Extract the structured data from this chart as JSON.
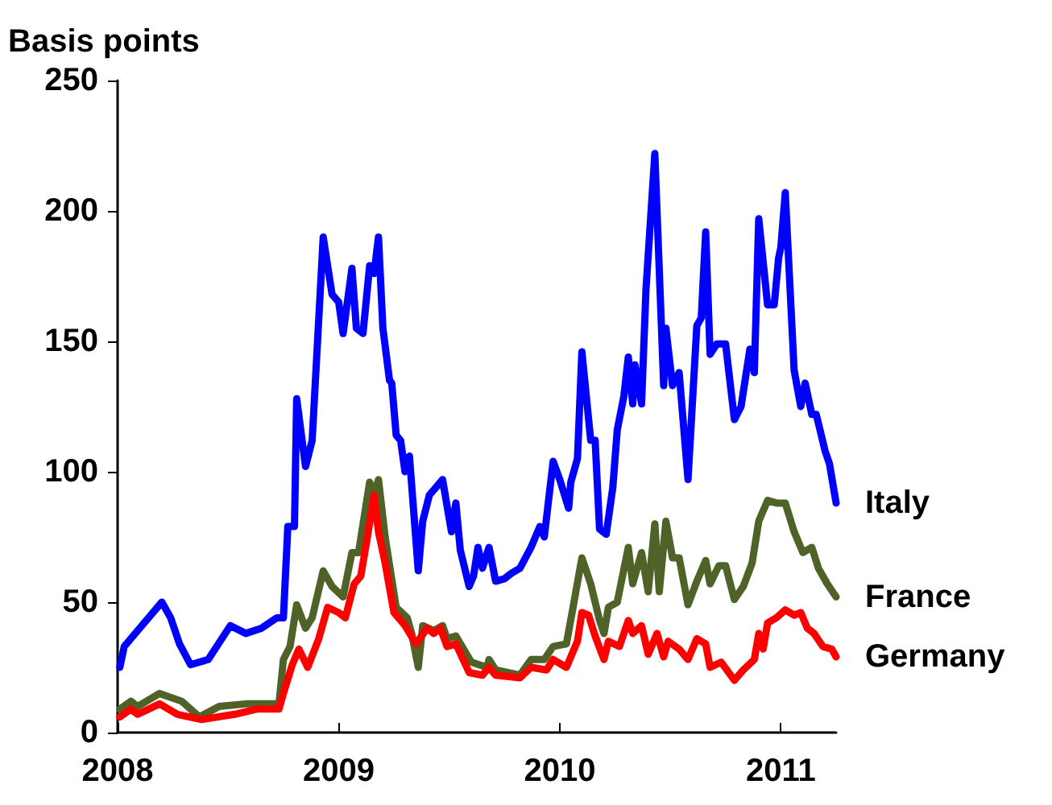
{
  "chart_data": {
    "type": "line",
    "ylabel": "Basis points",
    "xlim": [
      2008,
      2011.25
    ],
    "xticks": [
      2008,
      2009,
      2010,
      2011
    ],
    "ylim": [
      0,
      250
    ],
    "yticks": [
      0,
      50,
      100,
      150,
      200,
      250
    ],
    "line_style": "solid",
    "series": [
      {
        "name": "Italy",
        "color": "#0000ff",
        "x": [
          2008.01,
          2008.03,
          2008.08,
          2008.12,
          2008.2,
          2008.24,
          2008.28,
          2008.33,
          2008.41,
          2008.51,
          2008.58,
          2008.65,
          2008.72,
          2008.75,
          2008.77,
          2008.8,
          2008.81,
          2008.85,
          2008.88,
          2008.93,
          2008.97,
          2009.0,
          2009.02,
          2009.06,
          2009.08,
          2009.11,
          2009.14,
          2009.16,
          2009.18,
          2009.2,
          2009.23,
          2009.24,
          2009.26,
          2009.28,
          2009.3,
          2009.32,
          2009.36,
          2009.38,
          2009.41,
          2009.47,
          2009.51,
          2009.53,
          2009.55,
          2009.59,
          2009.61,
          2009.63,
          2009.65,
          2009.68,
          2009.71,
          2009.75,
          2009.78,
          2009.82,
          2009.87,
          2009.91,
          2009.93,
          2009.97,
          2010.0,
          2010.04,
          2010.05,
          2010.08,
          2010.1,
          2010.14,
          2010.16,
          2010.18,
          2010.21,
          2010.24,
          2010.26,
          2010.29,
          2010.31,
          2010.33,
          2010.34,
          2010.37,
          2010.39,
          2010.43,
          2010.47,
          2010.48,
          2010.51,
          2010.54,
          2010.58,
          2010.62,
          2010.64,
          2010.66,
          2010.68,
          2010.71,
          2010.75,
          2010.79,
          2010.82,
          2010.86,
          2010.88,
          2010.9,
          2010.94,
          2010.97,
          2010.99,
          2011.0,
          2011.02,
          2011.06,
          2011.09,
          2011.11,
          2011.14,
          2011.16,
          2011.2,
          2011.22,
          2011.25
        ],
        "values": [
          25,
          33,
          38,
          42,
          50,
          44,
          34,
          26,
          28,
          41,
          38,
          40,
          44,
          44,
          79,
          79,
          128,
          102,
          112,
          190,
          168,
          165,
          153,
          178,
          155,
          153,
          179,
          176,
          190,
          155,
          135,
          134,
          114,
          112,
          100,
          106,
          62,
          81,
          91,
          97,
          77,
          88,
          70,
          56,
          60,
          71,
          63,
          71,
          58,
          59,
          61,
          63,
          71,
          79,
          75,
          104,
          97,
          86,
          96,
          105,
          146,
          112,
          112,
          78,
          76,
          94,
          116,
          129,
          144,
          126,
          141,
          126,
          170,
          222,
          133,
          155,
          133,
          138,
          97,
          156,
          159,
          192,
          145,
          149,
          149,
          120,
          125,
          147,
          138,
          197,
          164,
          164,
          182,
          186,
          207,
          139,
          125,
          134,
          122,
          122,
          108,
          103,
          88
        ]
      },
      {
        "name": "France",
        "color": "#4f6228",
        "x": [
          2008.01,
          2008.06,
          2008.09,
          2008.19,
          2008.29,
          2008.37,
          2008.46,
          2008.58,
          2008.73,
          2008.75,
          2008.78,
          2008.81,
          2008.85,
          2008.88,
          2008.93,
          2008.97,
          2009.02,
          2009.06,
          2009.09,
          2009.14,
          2009.16,
          2009.18,
          2009.21,
          2009.26,
          2009.31,
          2009.33,
          2009.36,
          2009.38,
          2009.43,
          2009.47,
          2009.49,
          2009.53,
          2009.6,
          2009.67,
          2009.68,
          2009.71,
          2009.82,
          2009.87,
          2009.93,
          2009.97,
          2010.03,
          2010.06,
          2010.1,
          2010.14,
          2010.18,
          2010.2,
          2010.22,
          2010.26,
          2010.31,
          2010.33,
          2010.37,
          2010.4,
          2010.43,
          2010.45,
          2010.48,
          2010.51,
          2010.54,
          2010.58,
          2010.62,
          2010.66,
          2010.68,
          2010.72,
          2010.75,
          2010.79,
          2010.83,
          2010.87,
          2010.9,
          2010.94,
          2010.98,
          2011.02,
          2011.06,
          2011.1,
          2011.14,
          2011.17,
          2011.21,
          2011.25
        ],
        "values": [
          9,
          12,
          10,
          15,
          12,
          6,
          10,
          11,
          11,
          28,
          33,
          49,
          40,
          44,
          62,
          56,
          52,
          69,
          69,
          96,
          91,
          97,
          75,
          48,
          44,
          38,
          25,
          41,
          39,
          41,
          36,
          37,
          27,
          25,
          28,
          24,
          22,
          28,
          28,
          33,
          34,
          48,
          67,
          57,
          43,
          38,
          48,
          50,
          71,
          57,
          69,
          54,
          80,
          54,
          81,
          67,
          67,
          49,
          58,
          66,
          57,
          64,
          64,
          51,
          56,
          65,
          81,
          89,
          88,
          88,
          77,
          69,
          71,
          63,
          57,
          52
        ]
      },
      {
        "name": "Germany",
        "color": "#ff0000",
        "x": [
          2008.01,
          2008.06,
          2008.09,
          2008.19,
          2008.27,
          2008.38,
          2008.53,
          2008.63,
          2008.73,
          2008.75,
          2008.79,
          2008.82,
          2008.86,
          2008.91,
          2008.95,
          2009.0,
          2009.03,
          2009.07,
          2009.1,
          2009.13,
          2009.16,
          2009.18,
          2009.21,
          2009.25,
          2009.3,
          2009.35,
          2009.4,
          2009.43,
          2009.46,
          2009.49,
          2009.53,
          2009.59,
          2009.65,
          2009.68,
          2009.71,
          2009.82,
          2009.87,
          2009.94,
          2009.97,
          2010.03,
          2010.08,
          2010.1,
          2010.13,
          2010.16,
          2010.2,
          2010.22,
          2010.27,
          2010.31,
          2010.33,
          2010.37,
          2010.4,
          2010.44,
          2010.47,
          2010.49,
          2010.54,
          2010.58,
          2010.62,
          2010.66,
          2010.68,
          2010.73,
          2010.79,
          2010.83,
          2010.88,
          2010.9,
          2010.92,
          2010.94,
          2010.98,
          2011.02,
          2011.06,
          2011.09,
          2011.12,
          2011.15,
          2011.19,
          2011.23,
          2011.25
        ],
        "values": [
          6,
          9,
          7,
          11,
          7,
          5,
          7,
          9,
          9,
          15,
          26,
          32,
          25,
          36,
          48,
          46,
          44,
          57,
          60,
          75,
          91,
          77,
          65,
          46,
          41,
          34,
          40,
          38,
          40,
          33,
          34,
          23,
          22,
          25,
          22,
          21,
          25,
          24,
          28,
          25,
          35,
          46,
          45,
          37,
          28,
          35,
          33,
          43,
          38,
          41,
          30,
          38,
          29,
          35,
          32,
          28,
          36,
          34,
          25,
          27,
          20,
          24,
          28,
          38,
          32,
          42,
          44,
          47,
          45,
          46,
          40,
          38,
          33,
          32,
          29
        ]
      }
    ]
  }
}
